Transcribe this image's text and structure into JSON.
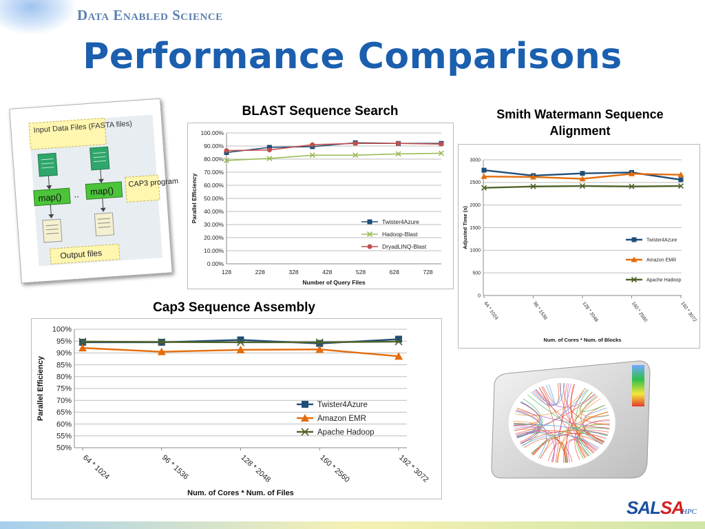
{
  "brand": "Data Enabled Science",
  "title": "Performance Comparisons",
  "diagram": {
    "input_label": "Input Data Files (FASTA files)",
    "map_labels": [
      "map()",
      "map()"
    ],
    "dots": "..",
    "cap3_label": "CAP3 program",
    "output_label": "Output files"
  },
  "logo": {
    "text_a": "SAL",
    "text_b": "SA",
    "suffix": "HPC"
  },
  "colors": {
    "twister": "#1f4e79",
    "emr": "#e46c0a",
    "hadoop": "#4f6228",
    "hadoop_blast": "#9bbb59",
    "dryad": "#c0504d"
  },
  "chart_data": [
    {
      "id": "blast",
      "type": "line",
      "title": "BLAST Sequence Search",
      "xlabel": "Number of Query Files",
      "ylabel": "Parallel Efficiency",
      "x_ticks": [
        "128",
        "228",
        "328",
        "428",
        "528",
        "628",
        "728"
      ],
      "xlim": [
        128,
        768
      ],
      "ylim": [
        0,
        100
      ],
      "y_ticks": [
        "0.00%",
        "10.00%",
        "20.00%",
        "30.00%",
        "40.00%",
        "50.00%",
        "60.00%",
        "70.00%",
        "80.00%",
        "90.00%",
        "100.00%"
      ],
      "series": [
        {
          "name": "Twister4Azure",
          "marker": "square",
          "color": "#1f4e79",
          "x": [
            128,
            256,
            384,
            512,
            640,
            768
          ],
          "y": [
            85,
            89,
            89.5,
            92.5,
            92,
            92
          ]
        },
        {
          "name": "Hadoop-Blast",
          "marker": "x",
          "color": "#9bbb59",
          "x": [
            128,
            256,
            384,
            512,
            640,
            768
          ],
          "y": [
            79,
            80.5,
            83,
            83,
            84,
            84.5
          ]
        },
        {
          "name": "DryadLINQ-Blast",
          "marker": "circle",
          "color": "#c0504d",
          "x": [
            128,
            256,
            384,
            512,
            640,
            768
          ],
          "y": [
            86.5,
            87,
            91,
            92,
            92,
            91.5
          ]
        }
      ]
    },
    {
      "id": "smith",
      "type": "line",
      "title": "Smith Watermann Sequence Alignment",
      "xlabel": "Num. of Cores * Num. of Blocks",
      "ylabel": "Adjusted Time (s)",
      "categories": [
        "64 * 1024",
        "96 * 1536",
        "128 * 2048",
        "160 * 2560",
        "192 * 3072"
      ],
      "ylim": [
        0,
        3000
      ],
      "y_ticks": [
        "0",
        "500",
        "1000",
        "1500",
        "2000",
        "2500",
        "3000"
      ],
      "series": [
        {
          "name": "Twister4Azure",
          "marker": "square",
          "color": "#1f4e79",
          "values": [
            2770,
            2650,
            2700,
            2720,
            2560
          ]
        },
        {
          "name": "Amazon EMR",
          "marker": "triangle",
          "color": "#e46c0a",
          "values": [
            2630,
            2620,
            2580,
            2690,
            2670
          ]
        },
        {
          "name": "Apache Hadoop",
          "marker": "x",
          "color": "#4f6228",
          "values": [
            2380,
            2410,
            2420,
            2410,
            2420
          ]
        }
      ]
    },
    {
      "id": "cap3",
      "type": "line",
      "title": "Cap3 Sequence Assembly",
      "xlabel": "Num. of Cores * Num. of Files",
      "ylabel": "Parallel Efficiency",
      "categories": [
        "64 * 1024",
        "96 * 1536",
        "128 * 2048",
        "160 * 2560",
        "192 * 3072"
      ],
      "ylim": [
        50,
        100
      ],
      "y_ticks": [
        "50%",
        "55%",
        "60%",
        "65%",
        "70%",
        "75%",
        "80%",
        "85%",
        "90%",
        "95%",
        "100%"
      ],
      "series": [
        {
          "name": "Twister4Azure",
          "marker": "square",
          "color": "#1f4e79",
          "values": [
            94.5,
            94.5,
            95.5,
            94,
            95.8
          ]
        },
        {
          "name": "Amazon EMR",
          "marker": "triangle",
          "color": "#e46c0a",
          "values": [
            92.1,
            90.5,
            91.3,
            91.5,
            88.6
          ]
        },
        {
          "name": "Apache Hadoop",
          "marker": "x",
          "color": "#4f6228",
          "values": [
            94.8,
            94.6,
            94.5,
            94.5,
            94.8
          ]
        }
      ]
    }
  ]
}
